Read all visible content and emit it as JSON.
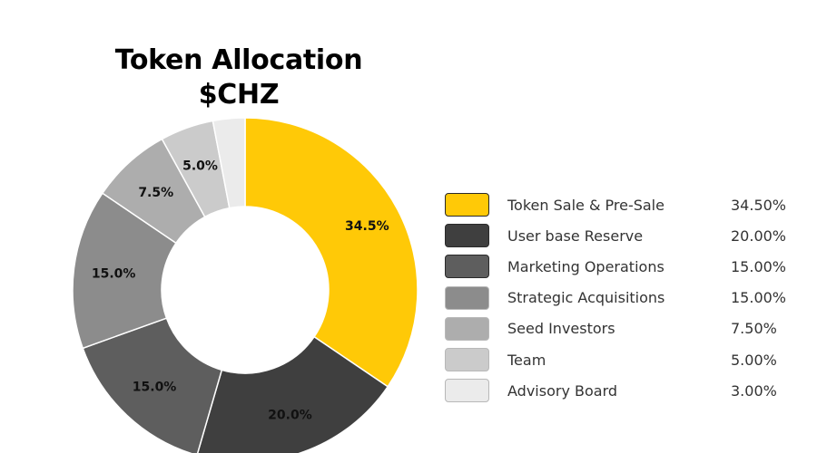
{
  "chart_data": {
    "type": "pie",
    "title": "Token Allocation",
    "subtitle": "$CHZ",
    "hole": true,
    "slices": [
      {
        "name": "Token Sale & Pre-Sale",
        "value": 34.5,
        "slice_label": "34.5%",
        "legend_value": "34.50%",
        "color": "#FFC907"
      },
      {
        "name": "User base Reserve",
        "value": 20.0,
        "slice_label": "20.0%",
        "legend_value": "20.00%",
        "color": "#3F3F3F"
      },
      {
        "name": "Marketing Operations",
        "value": 15.0,
        "slice_label": "15.0%",
        "legend_value": "15.00%",
        "color": "#5E5E5E"
      },
      {
        "name": "Strategic Acquisitions",
        "value": 15.0,
        "slice_label": "15.0%",
        "legend_value": "15.00%",
        "color": "#8C8C8C"
      },
      {
        "name": "Seed Investors",
        "value": 7.5,
        "slice_label": "7.5%",
        "legend_value": "7.50%",
        "color": "#ADADAD"
      },
      {
        "name": "Team",
        "value": 5.0,
        "slice_label": "5.0%",
        "legend_value": "5.00%",
        "color": "#CBCBCB"
      },
      {
        "name": "Advisory Board",
        "value": 3.0,
        "slice_label": "",
        "legend_value": "3.00%",
        "color": "#EBEBEB"
      }
    ],
    "legend_position": "right"
  }
}
